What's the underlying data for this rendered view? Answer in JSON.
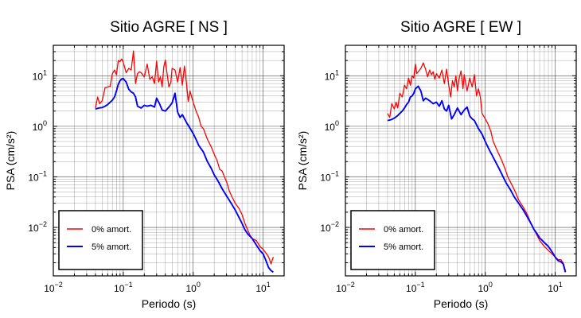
{
  "chart_data": [
    {
      "type": "line",
      "title": "Sitio AGRE [ NS ]",
      "xlabel": "Periodo (s)",
      "ylabel": "PSA (cm/s²)",
      "xscale": "log",
      "yscale": "log",
      "xlim": [
        0.01,
        20
      ],
      "ylim": [
        0.0011,
        40
      ],
      "grid": true,
      "legend_position": "bottom-left",
      "xticks": [
        {
          "value": 0.01,
          "base": "10",
          "exp": "−2"
        },
        {
          "value": 0.1,
          "base": "10",
          "exp": "−1"
        },
        {
          "value": 1,
          "base": "10",
          "exp": "0"
        },
        {
          "value": 10,
          "base": "10",
          "exp": "1"
        }
      ],
      "yticks": [
        {
          "value": 0.01,
          "base": "10",
          "exp": "−2"
        },
        {
          "value": 0.1,
          "base": "10",
          "exp": "−1"
        },
        {
          "value": 1,
          "base": "10",
          "exp": "0"
        },
        {
          "value": 10,
          "base": "10",
          "exp": "1"
        }
      ],
      "series": [
        {
          "name": "0% amort.",
          "color": "#ff0000",
          "x": [
            0.04,
            0.043,
            0.046,
            0.05,
            0.055,
            0.06,
            0.065,
            0.07,
            0.075,
            0.08,
            0.085,
            0.09,
            0.095,
            0.1,
            0.11,
            0.12,
            0.13,
            0.14,
            0.15,
            0.16,
            0.17,
            0.18,
            0.2,
            0.22,
            0.24,
            0.26,
            0.28,
            0.3,
            0.32,
            0.34,
            0.36,
            0.38,
            0.4,
            0.42,
            0.45,
            0.48,
            0.5,
            0.55,
            0.6,
            0.65,
            0.7,
            0.75,
            0.8,
            0.85,
            0.9,
            1.0,
            1.1,
            1.2,
            1.3,
            1.4,
            1.5,
            1.6,
            1.8,
            2.0,
            2.2,
            2.4,
            2.6,
            2.8,
            3.0,
            3.3,
            3.6,
            4.0,
            4.5,
            5.0,
            5.5,
            6.0,
            6.5,
            7.0,
            8.0,
            9.0,
            10.0,
            11.0,
            12.0,
            13.0,
            14.0
          ],
          "y": [
            2.3,
            3.8,
            2.8,
            3.2,
            5.8,
            6.0,
            6.2,
            11.0,
            13.0,
            10.5,
            20.0,
            19.0,
            21.5,
            18.5,
            11.5,
            14.0,
            13.0,
            31.0,
            7.0,
            11.0,
            12.0,
            11.5,
            9.5,
            17.0,
            8.5,
            9.5,
            7.0,
            19.5,
            7.5,
            9.5,
            6.0,
            15.0,
            20.5,
            12.0,
            6.0,
            7.5,
            14.0,
            13.0,
            7.5,
            14.5,
            6.5,
            15.5,
            7.5,
            3.1,
            5.0,
            3.0,
            2.0,
            1.5,
            1.0,
            0.9,
            0.7,
            0.55,
            0.4,
            0.28,
            0.21,
            0.14,
            0.13,
            0.1,
            0.08,
            0.052,
            0.04,
            0.03,
            0.024,
            0.018,
            0.012,
            0.009,
            0.007,
            0.006,
            0.0055,
            0.0042,
            0.0037,
            0.0031,
            0.0026,
            0.0019,
            0.0026
          ]
        },
        {
          "name": "5% amort.",
          "color": "#0000ff",
          "x": [
            0.04,
            0.045,
            0.05,
            0.055,
            0.06,
            0.065,
            0.07,
            0.075,
            0.08,
            0.085,
            0.09,
            0.095,
            0.1,
            0.11,
            0.12,
            0.13,
            0.14,
            0.15,
            0.16,
            0.18,
            0.2,
            0.22,
            0.25,
            0.28,
            0.3,
            0.33,
            0.36,
            0.4,
            0.45,
            0.5,
            0.55,
            0.6,
            0.65,
            0.7,
            0.8,
            0.9,
            1.0,
            1.1,
            1.2,
            1.4,
            1.6,
            1.8,
            2.0,
            2.3,
            2.6,
            3.0,
            3.5,
            4.0,
            4.5,
            5.0,
            5.5,
            6.0,
            7.0,
            8.0,
            9.0,
            10.0,
            11.0,
            12.0,
            13.0,
            14.0
          ],
          "y": [
            2.2,
            2.3,
            2.35,
            2.5,
            2.7,
            3.0,
            3.3,
            3.8,
            5.0,
            6.8,
            8.0,
            8.6,
            8.8,
            7.5,
            5.4,
            4.8,
            4.5,
            3.8,
            2.5,
            2.3,
            2.6,
            2.5,
            2.6,
            2.4,
            3.6,
            2.8,
            2.1,
            2.0,
            2.4,
            2.9,
            4.5,
            1.9,
            1.5,
            1.7,
            1.2,
            0.92,
            0.72,
            0.55,
            0.42,
            0.31,
            0.2,
            0.15,
            0.11,
            0.08,
            0.058,
            0.042,
            0.03,
            0.022,
            0.016,
            0.012,
            0.009,
            0.0075,
            0.006,
            0.0045,
            0.0035,
            0.003,
            0.0022,
            0.0016,
            0.0014,
            0.0013
          ]
        }
      ]
    },
    {
      "type": "line",
      "title": "Sitio AGRE [ EW ]",
      "xlabel": "Periodo (s)",
      "ylabel": "PSA (cm/s²)",
      "xscale": "log",
      "yscale": "log",
      "xlim": [
        0.01,
        20
      ],
      "ylim": [
        0.0011,
        40
      ],
      "grid": true,
      "legend_position": "bottom-left",
      "xticks": [
        {
          "value": 0.01,
          "base": "10",
          "exp": "−2"
        },
        {
          "value": 0.1,
          "base": "10",
          "exp": "−1"
        },
        {
          "value": 1,
          "base": "10",
          "exp": "0"
        },
        {
          "value": 10,
          "base": "10",
          "exp": "1"
        }
      ],
      "yticks": [
        {
          "value": 0.01,
          "base": "10",
          "exp": "−2"
        },
        {
          "value": 0.1,
          "base": "10",
          "exp": "−1"
        },
        {
          "value": 1,
          "base": "10",
          "exp": "0"
        },
        {
          "value": 10,
          "base": "10",
          "exp": "1"
        }
      ],
      "series": [
        {
          "name": "0% amort.",
          "color": "#ff0000",
          "x": [
            0.04,
            0.043,
            0.046,
            0.05,
            0.053,
            0.056,
            0.06,
            0.065,
            0.07,
            0.075,
            0.08,
            0.085,
            0.09,
            0.095,
            0.1,
            0.105,
            0.11,
            0.12,
            0.13,
            0.14,
            0.15,
            0.16,
            0.17,
            0.18,
            0.19,
            0.2,
            0.22,
            0.24,
            0.26,
            0.28,
            0.3,
            0.32,
            0.34,
            0.36,
            0.38,
            0.4,
            0.42,
            0.45,
            0.48,
            0.5,
            0.55,
            0.6,
            0.65,
            0.7,
            0.75,
            0.8,
            0.85,
            0.9,
            1.0,
            1.1,
            1.2,
            1.3,
            1.5,
            1.7,
            1.9,
            2.1,
            2.4,
            2.7,
            3.0,
            3.5,
            4.0,
            4.5,
            5.0,
            5.5,
            6.0,
            7.0,
            8.0,
            9.0,
            10.0,
            11.0,
            12.0,
            13.0,
            14.0
          ],
          "y": [
            1.8,
            1.5,
            2.8,
            2.2,
            3.0,
            2.3,
            4.5,
            3.8,
            6.5,
            5.5,
            9.0,
            6.5,
            10.0,
            9.0,
            17.0,
            11.0,
            12.0,
            14.0,
            18.0,
            13.5,
            9.5,
            13.0,
            10.5,
            12.0,
            8.5,
            11.0,
            9.0,
            13.0,
            7.0,
            13.5,
            6.5,
            3.8,
            8.0,
            6.0,
            10.0,
            5.0,
            8.5,
            12.5,
            5.5,
            10.5,
            5.0,
            9.0,
            6.0,
            10.5,
            4.0,
            5.5,
            3.8,
            1.8,
            1.4,
            1.1,
            0.8,
            0.5,
            0.32,
            0.22,
            0.15,
            0.1,
            0.07,
            0.05,
            0.035,
            0.025,
            0.018,
            0.012,
            0.009,
            0.007,
            0.0055,
            0.0042,
            0.0035,
            0.003,
            0.0026,
            0.0023,
            0.0023,
            0.002,
            0.0014
          ]
        },
        {
          "name": "5% amort.",
          "color": "#0000ff",
          "x": [
            0.04,
            0.045,
            0.05,
            0.055,
            0.06,
            0.065,
            0.07,
            0.075,
            0.08,
            0.085,
            0.09,
            0.095,
            0.1,
            0.11,
            0.12,
            0.13,
            0.14,
            0.15,
            0.16,
            0.18,
            0.2,
            0.22,
            0.24,
            0.26,
            0.28,
            0.3,
            0.33,
            0.36,
            0.4,
            0.45,
            0.5,
            0.55,
            0.6,
            0.65,
            0.7,
            0.8,
            0.9,
            1.0,
            1.1,
            1.2,
            1.4,
            1.6,
            1.8,
            2.0,
            2.3,
            2.6,
            3.0,
            3.5,
            4.0,
            4.5,
            5.0,
            5.5,
            6.0,
            7.0,
            8.0,
            9.0,
            10.0,
            11.0,
            12.0,
            13.0,
            14.0
          ],
          "y": [
            1.3,
            1.35,
            1.45,
            1.6,
            1.8,
            2.0,
            2.3,
            2.7,
            3.0,
            3.8,
            4.0,
            4.5,
            5.5,
            6.2,
            5.0,
            3.2,
            3.6,
            3.4,
            3.2,
            2.8,
            3.0,
            2.5,
            3.2,
            2.2,
            2.0,
            2.6,
            1.4,
            1.7,
            2.3,
            1.7,
            2.1,
            2.4,
            1.6,
            1.4,
            1.3,
            0.9,
            0.7,
            0.5,
            0.38,
            0.3,
            0.2,
            0.14,
            0.1,
            0.075,
            0.055,
            0.04,
            0.03,
            0.022,
            0.016,
            0.012,
            0.009,
            0.0075,
            0.0062,
            0.005,
            0.0042,
            0.0033,
            0.0026,
            0.0022,
            0.0021,
            0.0019,
            0.0013
          ]
        }
      ]
    }
  ]
}
